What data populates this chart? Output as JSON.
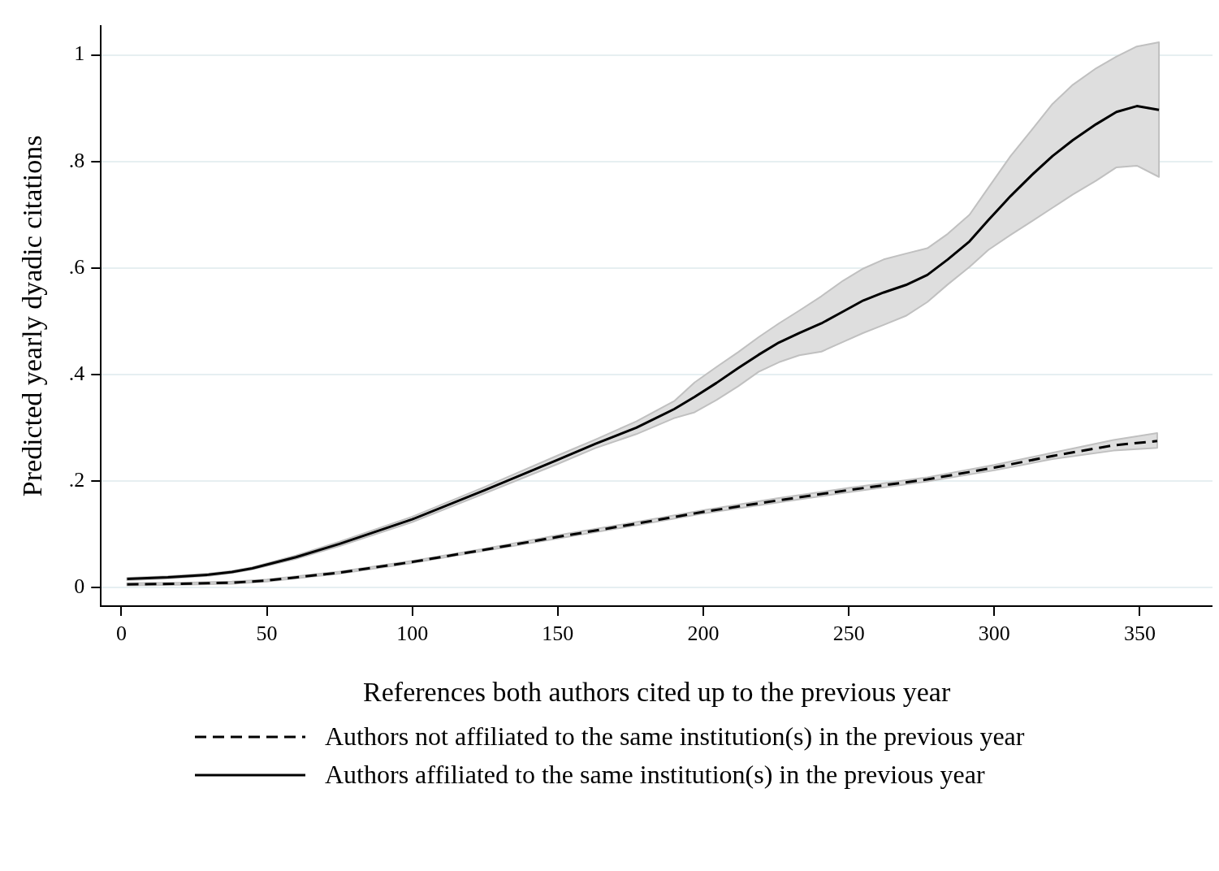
{
  "chart_data": {
    "type": "line",
    "xlabel": "References both authors cited up to the previous year",
    "ylabel": "Predicted yearly dyadic citations",
    "xlim": [
      -7,
      375
    ],
    "ylim": [
      -0.035,
      1.055
    ],
    "xticks": [
      0,
      50,
      100,
      150,
      200,
      250,
      300,
      350
    ],
    "yticks": [
      {
        "value": 0,
        "label": "0"
      },
      {
        "value": 0.2,
        "label": ".2"
      },
      {
        "value": 0.4,
        "label": ".4"
      },
      {
        "value": 0.6,
        "label": ".6"
      },
      {
        "value": 0.8,
        "label": ".8"
      },
      {
        "value": 1,
        "label": "1"
      }
    ],
    "grid": "y",
    "legend": "bottom",
    "marker": "none",
    "series": [
      {
        "name": "Authors not affiliated to the same institution(s) in the previous year",
        "color": "#000000",
        "line_style": "dashed",
        "x": [
          2,
          20,
          38,
          50,
          75,
          100,
          125,
          150,
          175,
          200,
          225,
          250,
          277,
          300,
          320,
          341,
          356
        ],
        "values": [
          0.006,
          0.007,
          0.009,
          0.013,
          0.028,
          0.048,
          0.071,
          0.095,
          0.118,
          0.142,
          0.163,
          0.183,
          0.203,
          0.225,
          0.247,
          0.267,
          0.275
        ],
        "lower": [
          0.004,
          0.005,
          0.007,
          0.011,
          0.026,
          0.046,
          0.069,
          0.092,
          0.115,
          0.139,
          0.159,
          0.179,
          0.199,
          0.22,
          0.241,
          0.257,
          0.262
        ],
        "upper": [
          0.008,
          0.009,
          0.011,
          0.015,
          0.03,
          0.05,
          0.073,
          0.098,
          0.121,
          0.145,
          0.167,
          0.187,
          0.207,
          0.23,
          0.253,
          0.277,
          0.29
        ]
      },
      {
        "name": "Authors affiliated to the same institution(s) in the previous year",
        "color": "#000000",
        "line_style": "solid",
        "x": [
          2,
          16,
          30,
          38,
          45,
          60,
          75,
          100,
          125,
          150,
          163,
          177,
          190,
          197,
          204.5,
          212,
          219,
          226,
          233,
          240.6,
          248,
          255,
          262,
          269.6,
          277,
          284,
          291.5,
          298,
          305.6,
          313,
          320,
          327,
          335,
          342,
          349,
          356.6
        ],
        "values": [
          0.016,
          0.019,
          0.024,
          0.029,
          0.036,
          0.057,
          0.082,
          0.128,
          0.183,
          0.24,
          0.27,
          0.3,
          0.335,
          0.358,
          0.384,
          0.412,
          0.437,
          0.46,
          0.478,
          0.496,
          0.518,
          0.539,
          0.554,
          0.568,
          0.587,
          0.616,
          0.65,
          0.69,
          0.735,
          0.775,
          0.81,
          0.84,
          0.87,
          0.893,
          0.904,
          0.897
        ],
        "lower": [
          0.014,
          0.017,
          0.022,
          0.027,
          0.034,
          0.054,
          0.078,
          0.123,
          0.177,
          0.232,
          0.262,
          0.288,
          0.318,
          0.329,
          0.352,
          0.378,
          0.405,
          0.423,
          0.436,
          0.443,
          0.461,
          0.478,
          0.493,
          0.51,
          0.536,
          0.569,
          0.602,
          0.634,
          0.662,
          0.688,
          0.713,
          0.738,
          0.764,
          0.789,
          0.792,
          0.771
        ],
        "upper": [
          0.018,
          0.021,
          0.026,
          0.031,
          0.038,
          0.06,
          0.086,
          0.133,
          0.189,
          0.248,
          0.278,
          0.312,
          0.35,
          0.385,
          0.414,
          0.442,
          0.47,
          0.496,
          0.52,
          0.547,
          0.576,
          0.599,
          0.616,
          0.627,
          0.637,
          0.664,
          0.7,
          0.751,
          0.81,
          0.86,
          0.908,
          0.944,
          0.975,
          0.997,
          1.016,
          1.024
        ]
      }
    ]
  }
}
